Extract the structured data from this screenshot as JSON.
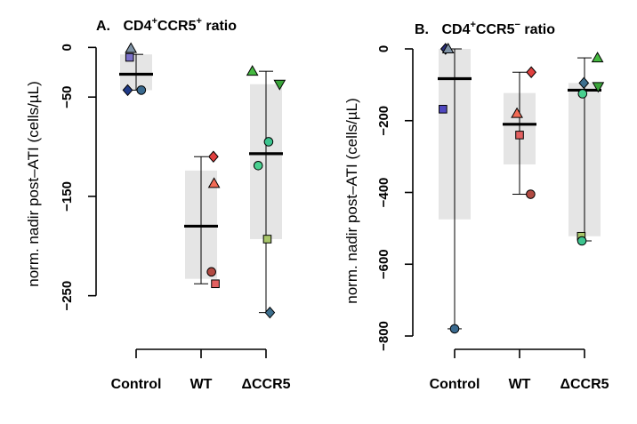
{
  "chart_data": [
    {
      "type": "box",
      "panel_letter": "A.",
      "title_parts": [
        "CD4",
        "+",
        "CCR5",
        "+",
        " ratio"
      ],
      "ylabel": "norm. nadir post–ATI (cells/µL)",
      "ylim": [
        -270,
        3
      ],
      "y_ticks": [
        0,
        -50,
        -150,
        -250
      ],
      "y_tick_labels": [
        "0",
        "−50",
        "−150",
        "−250"
      ],
      "categories": [
        "Control",
        "WT",
        "ΔCCR5"
      ],
      "boxes": [
        {
          "category": "Control",
          "q1": -43,
          "median": -27,
          "q3": -7,
          "whisker_low": -43,
          "whisker_high": -7
        },
        {
          "category": "WT",
          "q1": -233,
          "median": -180,
          "q3": -124,
          "whisker_low": -238,
          "whisker_high": -110
        },
        {
          "category": "ΔCCR5",
          "q1": -193,
          "median": -107,
          "q3": -37,
          "whisker_low": -267,
          "whisker_high": -24
        }
      ],
      "points": [
        {
          "category": "Control",
          "dx": -0.1,
          "value": -10,
          "shape": "square",
          "color": "#7b70c9"
        },
        {
          "category": "Control",
          "dx": -0.08,
          "value": -1,
          "shape": "triangle-up",
          "color": "#7f93a6"
        },
        {
          "category": "Control",
          "dx": -0.13,
          "value": -43,
          "shape": "diamond",
          "color": "#1f3a88"
        },
        {
          "category": "Control",
          "dx": 0.08,
          "value": -43,
          "shape": "circle",
          "color": "#3a6a8f"
        },
        {
          "category": "WT",
          "dx": 0.19,
          "value": -110,
          "shape": "diamond",
          "color": "#e0403f"
        },
        {
          "category": "WT",
          "dx": 0.2,
          "value": -137,
          "shape": "triangle-up",
          "color": "#f26b55"
        },
        {
          "category": "WT",
          "dx": 0.16,
          "value": -226,
          "shape": "circle",
          "color": "#b14a42"
        },
        {
          "category": "WT",
          "dx": 0.22,
          "value": -238,
          "shape": "square",
          "color": "#e26060"
        },
        {
          "category": "ΔCCR5",
          "dx": -0.21,
          "value": -24,
          "shape": "triangle-up",
          "color": "#45b940"
        },
        {
          "category": "ΔCCR5",
          "dx": 0.21,
          "value": -37,
          "shape": "triangle-down",
          "color": "#3aa53a"
        },
        {
          "category": "ΔCCR5",
          "dx": 0.04,
          "value": -95,
          "shape": "circle",
          "color": "#3dc48f"
        },
        {
          "category": "ΔCCR5",
          "dx": -0.12,
          "value": -119,
          "shape": "circle",
          "color": "#48d08f"
        },
        {
          "category": "ΔCCR5",
          "dx": 0.02,
          "value": -193,
          "shape": "square",
          "color": "#a8c66a"
        },
        {
          "category": "ΔCCR5",
          "dx": 0.06,
          "value": -267,
          "shape": "diamond",
          "color": "#3d6f8e"
        }
      ]
    },
    {
      "type": "box",
      "panel_letter": "B.",
      "title_parts": [
        "CD4",
        "+",
        "CCR5",
        "−",
        " ratio"
      ],
      "ylabel": "norm. nadir post–ATI (cells/µL)",
      "ylim": [
        -800,
        0
      ],
      "y_ticks": [
        0,
        -200,
        -400,
        -600,
        -800
      ],
      "y_tick_labels": [
        "0",
        "−200",
        "−400",
        "−600",
        "−800"
      ],
      "categories": [
        "Control",
        "WT",
        "ΔCCR5"
      ],
      "boxes": [
        {
          "category": "Control",
          "q1": -475,
          "median": -83,
          "q3": 0,
          "whisker_low": -780,
          "whisker_high": 0
        },
        {
          "category": "WT",
          "q1": -322,
          "median": -210,
          "q3": -123,
          "whisker_low": -405,
          "whisker_high": -65
        },
        {
          "category": "ΔCCR5",
          "q1": -522,
          "median": -115,
          "q3": -95,
          "whisker_low": -535,
          "whisker_high": -25
        }
      ],
      "points": [
        {
          "category": "Control",
          "dx": -0.14,
          "value": 0,
          "shape": "diamond",
          "color": "#2a2f78"
        },
        {
          "category": "Control",
          "dx": -0.1,
          "value": 0,
          "shape": "triangle-up",
          "color": "#7f93a6"
        },
        {
          "category": "Control",
          "dx": -0.18,
          "value": -168,
          "shape": "square",
          "color": "#5048c0"
        },
        {
          "category": "Control",
          "dx": 0.0,
          "value": -780,
          "shape": "circle",
          "color": "#3a6a8f"
        },
        {
          "category": "WT",
          "dx": 0.18,
          "value": -65,
          "shape": "diamond",
          "color": "#e0403f"
        },
        {
          "category": "WT",
          "dx": -0.04,
          "value": -180,
          "shape": "triangle-up",
          "color": "#f26b55"
        },
        {
          "category": "WT",
          "dx": 0.0,
          "value": -240,
          "shape": "square",
          "color": "#e26060"
        },
        {
          "category": "WT",
          "dx": 0.17,
          "value": -405,
          "shape": "circle",
          "color": "#b14a42"
        },
        {
          "category": "ΔCCR5",
          "dx": 0.2,
          "value": -25,
          "shape": "triangle-up",
          "color": "#45b940"
        },
        {
          "category": "ΔCCR5",
          "dx": -0.01,
          "value": -95,
          "shape": "diamond",
          "color": "#3d6f8e"
        },
        {
          "category": "ΔCCR5",
          "dx": 0.21,
          "value": -105,
          "shape": "triangle-down",
          "color": "#3aa53a"
        },
        {
          "category": "ΔCCR5",
          "dx": -0.03,
          "value": -125,
          "shape": "circle",
          "color": "#48d08f"
        },
        {
          "category": "ΔCCR5",
          "dx": -0.05,
          "value": -522,
          "shape": "square",
          "color": "#a8c66a"
        },
        {
          "category": "ΔCCR5",
          "dx": -0.04,
          "value": -535,
          "shape": "circle",
          "color": "#3dc48f"
        }
      ]
    }
  ]
}
